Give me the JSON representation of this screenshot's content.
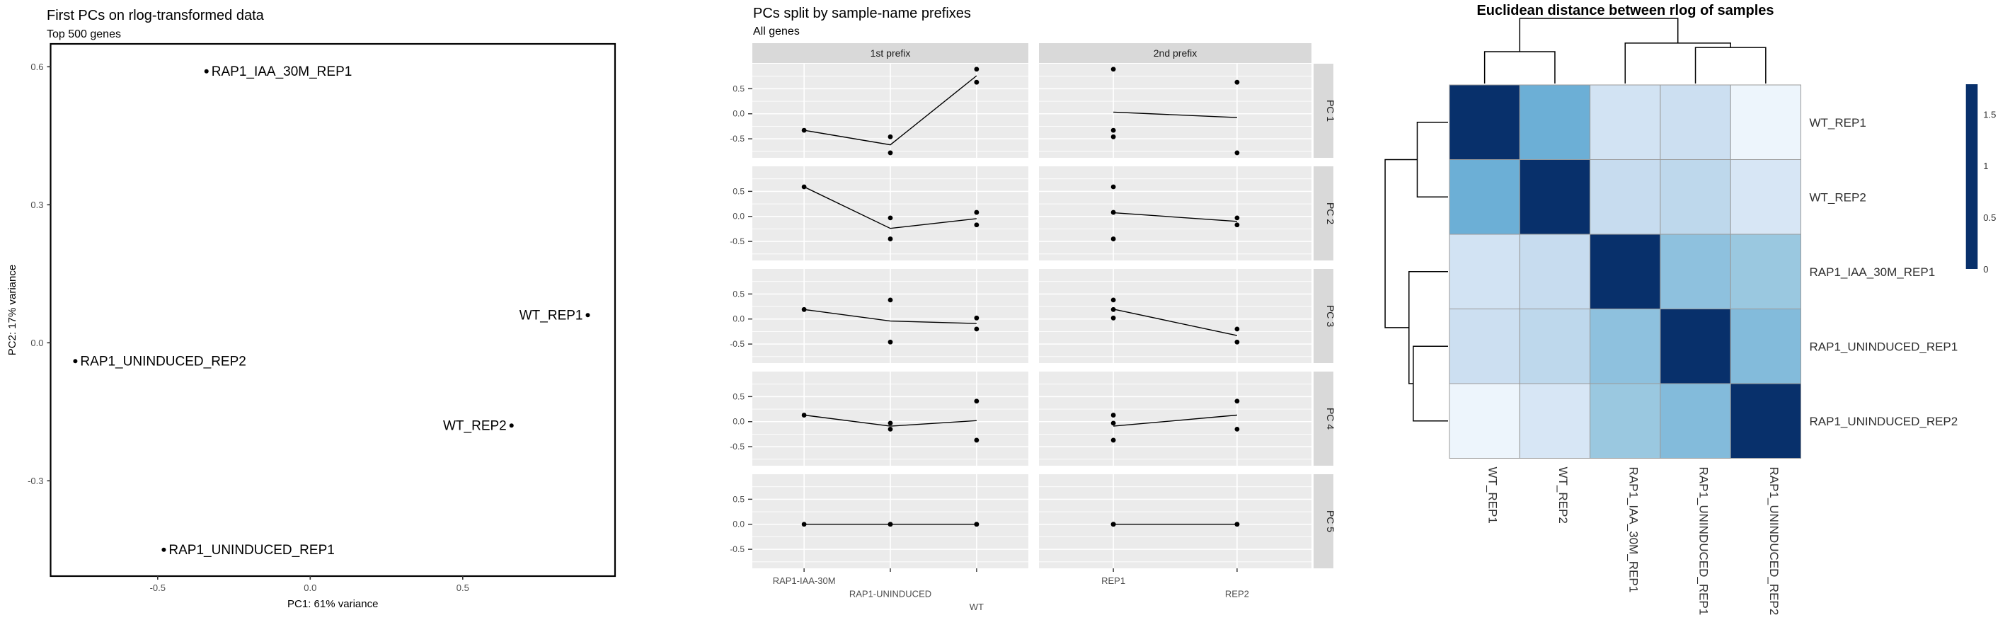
{
  "chart_data": [
    {
      "id": "pca",
      "type": "scatter",
      "title": "First PCs on rlog-transformed data",
      "subtitle": "Top 500 genes",
      "xlabel": "PC1: 61% variance",
      "ylabel": "PC2: 17% variance",
      "xlim": [
        -0.851,
        1.0
      ],
      "ylim": [
        -0.507,
        0.65
      ],
      "xticks": [
        {
          "v": -0.5,
          "label": "-0.5"
        },
        {
          "v": 0.0,
          "label": "0.0"
        },
        {
          "v": 0.5,
          "label": "0.5"
        }
      ],
      "yticks": [
        {
          "v": 0.6,
          "label": "0.6"
        },
        {
          "v": 0.3,
          "label": "0.3"
        },
        {
          "v": 0.0,
          "label": "0.0"
        },
        {
          "v": -0.3,
          "label": "-0.3"
        }
      ],
      "grid": false,
      "points": [
        {
          "label": "RAP1_IAA_30M_REP1",
          "x": -0.34,
          "y": 0.59,
          "label_side": "right"
        },
        {
          "label": "WT_REP1",
          "x": 0.91,
          "y": 0.06,
          "label_side": "left"
        },
        {
          "label": "RAP1_UNINDUCED_REP2",
          "x": -0.77,
          "y": -0.04,
          "label_side": "right"
        },
        {
          "label": "WT_REP2",
          "x": 0.66,
          "y": -0.18,
          "label_side": "left"
        },
        {
          "label": "RAP1_UNINDUCED_REP1",
          "x": -0.48,
          "y": -0.45,
          "label_side": "right"
        }
      ]
    },
    {
      "id": "pc_facets",
      "type": "line",
      "title": "PCs split by sample-name prefixes",
      "subtitle": "All genes",
      "col_facets": [
        {
          "label": "1st prefix",
          "key": "prefix1",
          "categories": [
            "RAP1-IAA-30M",
            "RAP1-UNINDUCED",
            "WT"
          ],
          "label_stagger_rows": [
            0,
            1,
            2
          ]
        },
        {
          "label": "2nd prefix",
          "key": "prefix2",
          "categories": [
            "REP1",
            "REP2"
          ],
          "label_stagger_rows": [
            0,
            1
          ]
        }
      ],
      "row_facets": [
        "PC 1",
        "PC 2",
        "PC 3",
        "PC 4",
        "PC 5"
      ],
      "ylim": [
        -0.88,
        1.0
      ],
      "yticks": [
        {
          "v": 0.5,
          "label": "0.5"
        },
        {
          "v": 0.0,
          "label": "0.0"
        },
        {
          "v": -0.5,
          "label": "-0.5"
        }
      ],
      "minor_yticks": [
        0.75,
        0.25,
        -0.25,
        -0.75
      ],
      "grid": true,
      "samples": [
        {
          "name": "RAP1_IAA_30M_REP1",
          "prefix1": "RAP1-IAA-30M",
          "prefix2": "REP1",
          "pcs": [
            -0.33,
            0.59,
            0.19,
            0.13,
            0.0
          ]
        },
        {
          "name": "RAP1_UNINDUCED_REP1",
          "prefix1": "RAP1-UNINDUCED",
          "prefix2": "REP1",
          "pcs": [
            -0.46,
            -0.45,
            0.38,
            -0.03,
            0.0
          ]
        },
        {
          "name": "RAP1_UNINDUCED_REP2",
          "prefix1": "RAP1-UNINDUCED",
          "prefix2": "REP2",
          "pcs": [
            -0.78,
            -0.03,
            -0.46,
            -0.15,
            0.0
          ]
        },
        {
          "name": "WT_REP1",
          "prefix1": "WT",
          "prefix2": "REP1",
          "pcs": [
            0.89,
            0.08,
            0.02,
            -0.37,
            0.0
          ]
        },
        {
          "name": "WT_REP2",
          "prefix1": "WT",
          "prefix2": "REP2",
          "pcs": [
            0.63,
            -0.17,
            -0.2,
            0.41,
            0.0
          ]
        }
      ],
      "line_rule": "connects per-facet group means across categories"
    },
    {
      "id": "dist_heatmap",
      "type": "heatmap",
      "title": "Euclidean distance between rlog of samples",
      "labels": [
        "WT_REP1",
        "WT_REP2",
        "RAP1_IAA_30M_REP1",
        "RAP1_UNINDUCED_REP1",
        "RAP1_UNINDUCED_REP2"
      ],
      "matrix": [
        [
          0.0,
          0.9,
          1.45,
          1.4,
          1.7
        ],
        [
          0.9,
          0.0,
          1.35,
          1.3,
          1.5
        ],
        [
          1.45,
          1.35,
          0.0,
          1.05,
          1.1
        ],
        [
          1.4,
          1.3,
          1.05,
          0.0,
          1.0
        ],
        [
          1.7,
          1.5,
          1.1,
          1.0,
          0.0
        ]
      ],
      "scale": {
        "min": 0,
        "max": 1.79,
        "ticks": [
          {
            "v": 1.5,
            "label": "1.5"
          },
          {
            "v": 1.0,
            "label": "1"
          },
          {
            "v": 0.5,
            "label": "0.5"
          },
          {
            "v": 0.0,
            "label": "0"
          }
        ],
        "palette_low_to_high": [
          "#08306B",
          "#08519C",
          "#2171B5",
          "#4292C6",
          "#6BAED6",
          "#9ECAE1",
          "#C6DBEF",
          "#DEEBF7",
          "#F7FBFF"
        ]
      },
      "dendrogram_tree": {
        "h": 1.9,
        "l": {
          "h": 0.93,
          "l": 0,
          "r": 1
        },
        "r": {
          "h": 1.18,
          "l": 2,
          "r": {
            "h": 1.05,
            "l": 3,
            "r": 4
          }
        }
      }
    }
  ],
  "theme": {
    "panel_bg": "#EBEBEB",
    "strip_bg": "#D9D9D9",
    "grid_color": "#FFFFFF",
    "tick_label_color": "#4D4D4D",
    "axis_text_color": "#000000",
    "point_color": "#000000",
    "line_color": "#000000",
    "panel_border_color": "#000000",
    "heat_cell_border": "#9A9A9A"
  }
}
